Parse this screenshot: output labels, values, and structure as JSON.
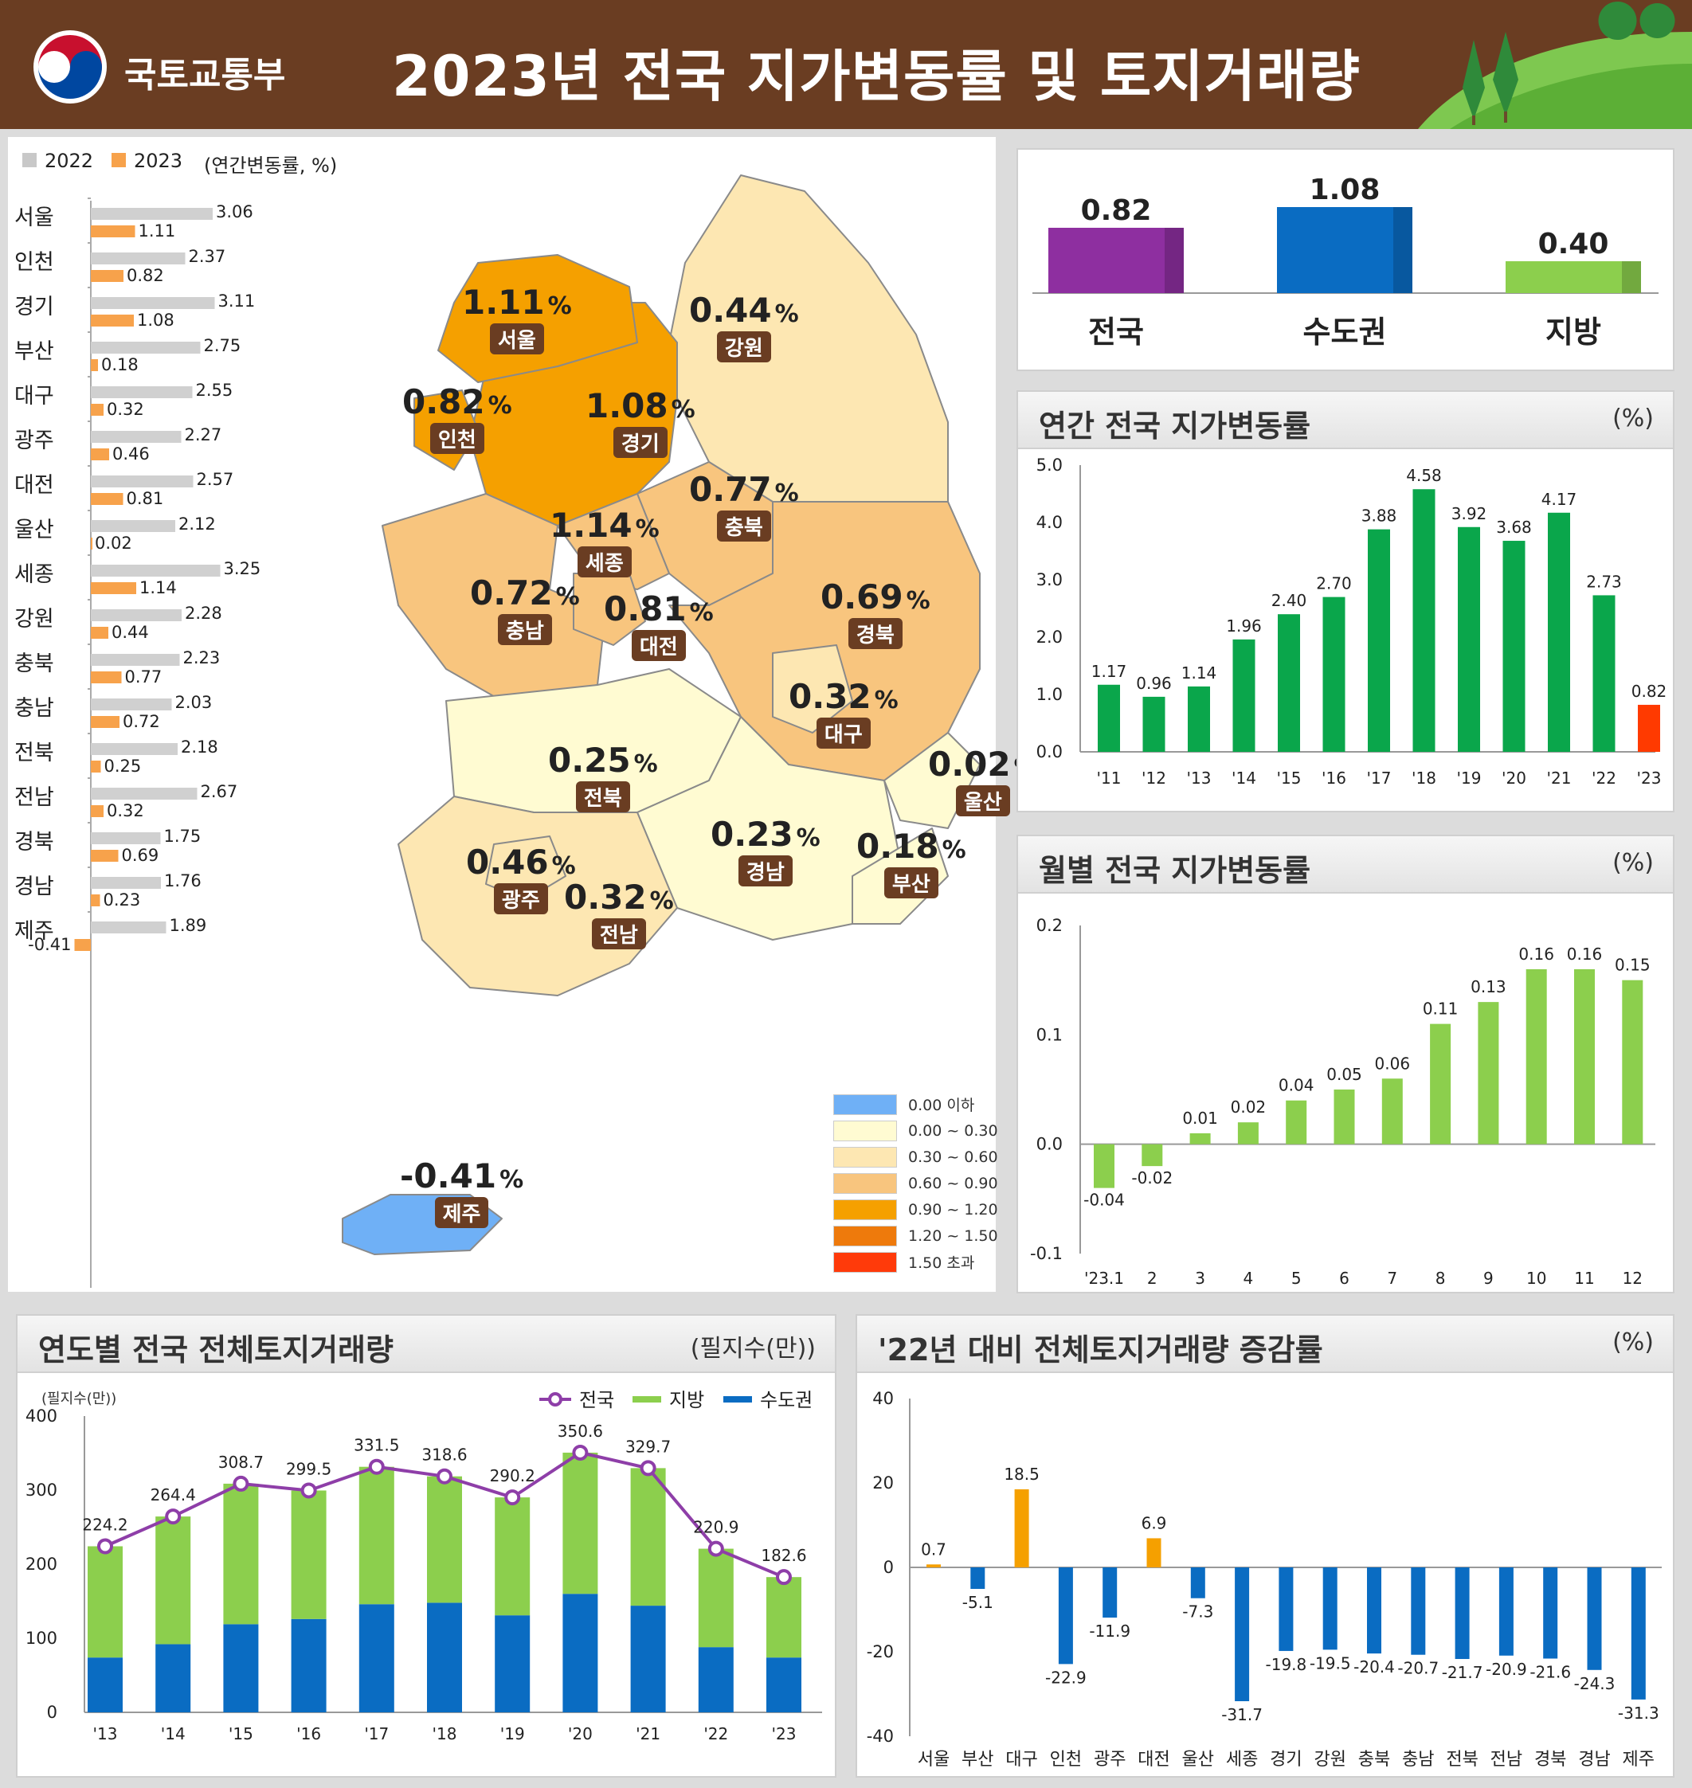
{
  "header": {
    "ministry": "국토교통부",
    "title": "2023년 전국 지가변동률 및 토지거래량"
  },
  "colors": {
    "header_bg": "#6a3d22",
    "bar_2022": "#d0d0d0",
    "bar_2023": "#f7a24b",
    "annual_bar": "#0aa64b",
    "annual_highlight": "#ff3a00",
    "monthly_bar": "#8ccf4d",
    "metro_blue": "#0a6cc2",
    "region_green": "#8ccf4d",
    "national_purple": "#8e2fa0",
    "line_purple": "#8e3ea8",
    "orange": "#f5a000"
  },
  "legend_top": {
    "y2022": "2022",
    "y2023": "2023",
    "unit": "(연간변동률, %)"
  },
  "regions_chart": {
    "type": "bar",
    "categories": [
      "서울",
      "인천",
      "경기",
      "부산",
      "대구",
      "광주",
      "대전",
      "울산",
      "세종",
      "강원",
      "충북",
      "충남",
      "전북",
      "전남",
      "경북",
      "경남",
      "제주"
    ],
    "series": [
      {
        "name": "2022",
        "values": [
          3.06,
          2.37,
          3.11,
          2.75,
          2.55,
          2.27,
          2.57,
          2.12,
          3.25,
          2.28,
          2.23,
          2.03,
          2.18,
          2.67,
          1.75,
          1.76,
          1.89
        ]
      },
      {
        "name": "2023",
        "values": [
          1.11,
          0.82,
          1.08,
          0.18,
          0.32,
          0.46,
          0.81,
          0.02,
          1.14,
          0.44,
          0.77,
          0.72,
          0.25,
          0.32,
          0.69,
          0.23,
          -0.41
        ]
      }
    ],
    "value_labels_2022": [
      "3.06",
      "2.37",
      "3.11",
      "2.75",
      "2.55",
      "2.27",
      "2.57",
      "2.12",
      "3.25",
      "2.28",
      "2.23",
      "2.03",
      "2.18",
      "2.67",
      "1.75",
      "1.76",
      "1.89"
    ],
    "value_labels_2023": [
      "1.11",
      "0.82",
      "1.08",
      "0.18",
      "0.32",
      "0.46",
      "0.81",
      "0.02",
      "1.14",
      "0.44",
      "0.77",
      "0.72",
      "0.25",
      "0.32",
      "0.69",
      "0.23",
      "-0.41"
    ]
  },
  "map": {
    "regions": [
      {
        "name": "서울",
        "value": "1.11"
      },
      {
        "name": "강원",
        "value": "0.44"
      },
      {
        "name": "인천",
        "value": "0.82"
      },
      {
        "name": "경기",
        "value": "1.08"
      },
      {
        "name": "충북",
        "value": "0.77"
      },
      {
        "name": "세종",
        "value": "1.14"
      },
      {
        "name": "충남",
        "value": "0.72"
      },
      {
        "name": "대전",
        "value": "0.81"
      },
      {
        "name": "경북",
        "value": "0.69"
      },
      {
        "name": "대구",
        "value": "0.32"
      },
      {
        "name": "전북",
        "value": "0.25"
      },
      {
        "name": "울산",
        "value": "0.02"
      },
      {
        "name": "경남",
        "value": "0.23"
      },
      {
        "name": "부산",
        "value": "0.18"
      },
      {
        "name": "광주",
        "value": "0.46"
      },
      {
        "name": "전남",
        "value": "0.32"
      },
      {
        "name": "제주",
        "value": "-0.41"
      }
    ],
    "pct": "%",
    "legend": [
      {
        "label": "0.00 이하",
        "color": "#6fb0f6"
      },
      {
        "label": "0.00 ~ 0.30",
        "color": "#fffbd2"
      },
      {
        "label": "0.30 ~ 0.60",
        "color": "#fde7b2"
      },
      {
        "label": "0.60 ~ 0.90",
        "color": "#f8c57e"
      },
      {
        "label": "0.90 ~ 1.20",
        "color": "#f5a000"
      },
      {
        "label": "1.20 ~ 1.50",
        "color": "#ee7a0c"
      },
      {
        "label": "1.50 초과",
        "color": "#ff3a0a"
      }
    ]
  },
  "summary": {
    "type": "bar",
    "categories": [
      "전국",
      "수도권",
      "지방"
    ],
    "values": [
      0.82,
      1.08,
      0.4
    ],
    "labels": [
      "0.82",
      "1.08",
      "0.40"
    ]
  },
  "annual": {
    "title": "연간 전국 지가변동률",
    "unit": "(%)",
    "type": "bar",
    "categories": [
      "'11",
      "'12",
      "'13",
      "'14",
      "'15",
      "'16",
      "'17",
      "'18",
      "'19",
      "'20",
      "'21",
      "'22",
      "'23"
    ],
    "values": [
      1.17,
      0.96,
      1.14,
      1.96,
      2.4,
      2.7,
      3.88,
      4.58,
      3.92,
      3.68,
      4.17,
      2.73,
      0.82
    ],
    "labels": [
      "1.17",
      "0.96",
      "1.14",
      "1.96",
      "2.40",
      "2.70",
      "3.88",
      "4.58",
      "3.92",
      "3.68",
      "4.17",
      "2.73",
      "0.82"
    ],
    "ylim": [
      0,
      5
    ],
    "yticks": [
      "0.0",
      "1.0",
      "2.0",
      "3.0",
      "4.0",
      "5.0"
    ]
  },
  "monthly": {
    "title": "월별 전국 지가변동률",
    "unit": "(%)",
    "type": "bar",
    "categories": [
      "'23.1",
      "2",
      "3",
      "4",
      "5",
      "6",
      "7",
      "8",
      "9",
      "10",
      "11",
      "12"
    ],
    "values": [
      -0.04,
      -0.02,
      0.01,
      0.02,
      0.04,
      0.05,
      0.06,
      0.11,
      0.13,
      0.16,
      0.16,
      0.15
    ],
    "labels": [
      "-0.04",
      "-0.02",
      "0.01",
      "0.02",
      "0.04",
      "0.05",
      "0.06",
      "0.11",
      "0.13",
      "0.16",
      "0.16",
      "0.15"
    ],
    "ylim": [
      -0.1,
      0.2
    ],
    "yticks": [
      "-0.1",
      "0.0",
      "0.1",
      "0.2"
    ]
  },
  "volume": {
    "title": "연도별 전국 전체토지거래량",
    "unit": "(필지수(만))",
    "axis_unit": "(필지수(만))",
    "type": "bar",
    "legend": [
      "전국",
      "지방",
      "수도권"
    ],
    "categories": [
      "'13",
      "'14",
      "'15",
      "'16",
      "'17",
      "'18",
      "'19",
      "'20",
      "'21",
      "'22",
      "'23"
    ],
    "series": [
      {
        "name": "수도권",
        "values": [
          74,
          92,
          119,
          126,
          146,
          148,
          131,
          160,
          144,
          88,
          74
        ]
      },
      {
        "name": "지방",
        "values": [
          150.2,
          172.4,
          189.7,
          173.5,
          185.5,
          170.6,
          159.2,
          190.6,
          185.7,
          132.9,
          108.6
        ]
      },
      {
        "name": "전국",
        "values": [
          224.2,
          264.4,
          308.7,
          299.5,
          331.5,
          318.6,
          290.2,
          350.6,
          329.7,
          220.9,
          182.6
        ]
      }
    ],
    "labels": [
      "224.2",
      "264.4",
      "308.7",
      "299.5",
      "331.5",
      "318.6",
      "290.2",
      "350.6",
      "329.7",
      "220.9",
      "182.6"
    ],
    "ylim": [
      0,
      400
    ],
    "yticks": [
      "0",
      "100",
      "200",
      "300",
      "400"
    ]
  },
  "change": {
    "title": "'22년 대비 전체토지거래량 증감률",
    "unit": "(%)",
    "type": "bar",
    "categories": [
      "서울",
      "부산",
      "대구",
      "인천",
      "광주",
      "대전",
      "울산",
      "세종",
      "경기",
      "강원",
      "충북",
      "충남",
      "전북",
      "전남",
      "경북",
      "경남",
      "제주"
    ],
    "values": [
      0.7,
      -5.1,
      18.5,
      -22.9,
      -11.9,
      6.9,
      -7.3,
      -31.7,
      -19.8,
      -19.5,
      -20.4,
      -20.7,
      -21.7,
      -20.9,
      -21.6,
      -24.3,
      -31.3
    ],
    "labels": [
      "0.7",
      "-5.1",
      "18.5",
      "-22.9",
      "-11.9",
      "6.9",
      "-7.3",
      "-31.7",
      "-19.8",
      "-19.5",
      "-20.4",
      "-20.7",
      "-21.7",
      "-20.9",
      "-21.6",
      "-24.3",
      "-31.3"
    ],
    "ylim": [
      -40,
      40
    ],
    "yticks": [
      "-40",
      "-20",
      "0",
      "20",
      "40"
    ]
  }
}
